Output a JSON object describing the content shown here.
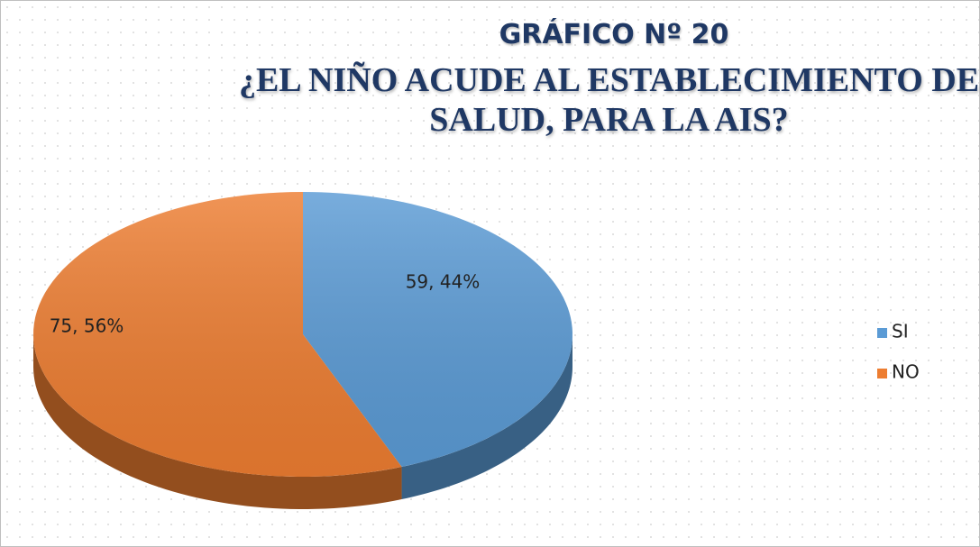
{
  "chart_data": {
    "type": "pie3d",
    "title": "GRÁFICO Nº 20",
    "subtitle": "¿EL NIÑO ACUDE AL ESTABLECIMIENTO DE SALUD, PARA LA AIS?",
    "categories": [
      "SI",
      "NO"
    ],
    "values": [
      59,
      75
    ],
    "value_labels": [
      "59, 44%",
      "75, 56%"
    ],
    "colors": [
      "#5b9bd5",
      "#ed7d31"
    ],
    "legend": "right"
  }
}
